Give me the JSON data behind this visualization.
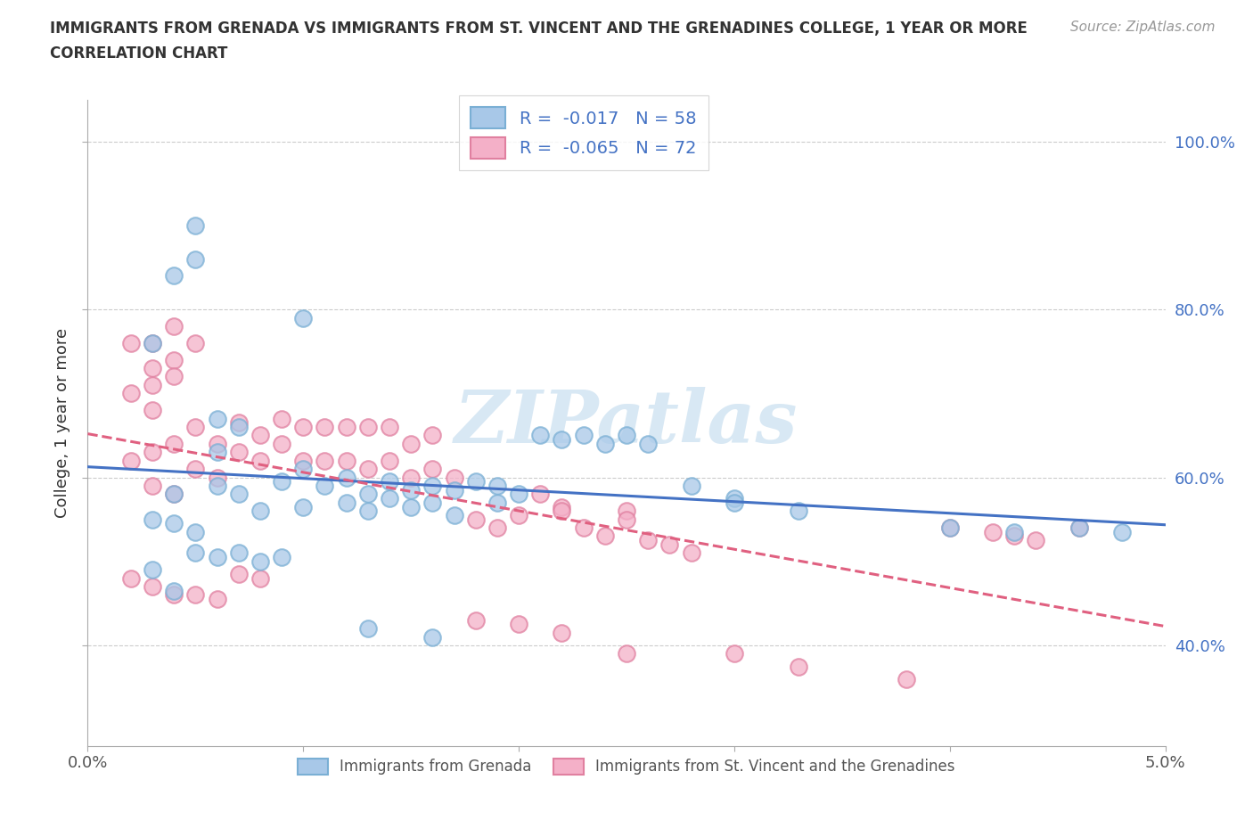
{
  "title_line1": "IMMIGRANTS FROM GRENADA VS IMMIGRANTS FROM ST. VINCENT AND THE GRENADINES COLLEGE, 1 YEAR OR MORE",
  "title_line2": "CORRELATION CHART",
  "source_text": "Source: ZipAtlas.com",
  "ylabel": "College, 1 year or more",
  "xlim": [
    0.0,
    0.05
  ],
  "ylim": [
    0.28,
    1.05
  ],
  "y_ticks": [
    0.4,
    0.6,
    0.8,
    1.0
  ],
  "y_tick_labels": [
    "40.0%",
    "60.0%",
    "80.0%",
    "100.0%"
  ],
  "x_ticks": [
    0.0,
    0.01,
    0.02,
    0.03,
    0.04,
    0.05
  ],
  "x_tick_labels": [
    "0.0%",
    "",
    "",
    "",
    "",
    "5.0%"
  ],
  "color_blue": "#a8c8e8",
  "edge_blue": "#7aafd4",
  "color_pink": "#f4b0c8",
  "edge_pink": "#e080a0",
  "line_blue": "#4472c4",
  "line_pink": "#e06080",
  "legend_text_color": "#4472c4",
  "legend_R1": "R =  -0.017",
  "legend_N1": "N = 58",
  "legend_R2": "R =  -0.065",
  "legend_N2": "N = 72",
  "label_blue": "Immigrants from Grenada",
  "label_pink": "Immigrants from St. Vincent and the Grenadines",
  "blue_x": [
    0.004,
    0.006,
    0.007,
    0.008,
    0.009,
    0.01,
    0.01,
    0.011,
    0.012,
    0.012,
    0.013,
    0.013,
    0.014,
    0.014,
    0.015,
    0.015,
    0.016,
    0.016,
    0.017,
    0.017,
    0.018,
    0.019,
    0.019,
    0.02,
    0.021,
    0.022,
    0.023,
    0.024,
    0.025,
    0.026,
    0.003,
    0.004,
    0.005,
    0.006,
    0.007,
    0.008,
    0.009,
    0.003,
    0.004,
    0.005,
    0.003,
    0.004,
    0.005,
    0.005,
    0.006,
    0.006,
    0.007,
    0.01,
    0.013,
    0.016,
    0.028,
    0.03,
    0.03,
    0.033,
    0.04,
    0.043,
    0.046,
    0.048
  ],
  "blue_y": [
    0.58,
    0.59,
    0.58,
    0.56,
    0.595,
    0.565,
    0.61,
    0.59,
    0.57,
    0.6,
    0.56,
    0.58,
    0.575,
    0.595,
    0.565,
    0.585,
    0.57,
    0.59,
    0.555,
    0.585,
    0.595,
    0.57,
    0.59,
    0.58,
    0.65,
    0.645,
    0.65,
    0.64,
    0.65,
    0.64,
    0.49,
    0.465,
    0.51,
    0.505,
    0.51,
    0.5,
    0.505,
    0.55,
    0.545,
    0.535,
    0.76,
    0.84,
    0.9,
    0.86,
    0.63,
    0.67,
    0.66,
    0.79,
    0.42,
    0.41,
    0.59,
    0.575,
    0.57,
    0.56,
    0.54,
    0.535,
    0.54,
    0.535
  ],
  "pink_x": [
    0.002,
    0.003,
    0.003,
    0.004,
    0.004,
    0.005,
    0.005,
    0.006,
    0.006,
    0.007,
    0.007,
    0.008,
    0.008,
    0.009,
    0.009,
    0.01,
    0.01,
    0.011,
    0.011,
    0.012,
    0.012,
    0.013,
    0.013,
    0.014,
    0.014,
    0.015,
    0.015,
    0.016,
    0.016,
    0.017,
    0.018,
    0.019,
    0.02,
    0.021,
    0.022,
    0.022,
    0.023,
    0.024,
    0.025,
    0.025,
    0.026,
    0.027,
    0.028,
    0.002,
    0.003,
    0.004,
    0.005,
    0.006,
    0.007,
    0.008,
    0.002,
    0.003,
    0.003,
    0.004,
    0.004,
    0.005,
    0.002,
    0.003,
    0.003,
    0.004,
    0.018,
    0.02,
    0.022,
    0.025,
    0.03,
    0.033,
    0.038,
    0.04,
    0.042,
    0.043,
    0.044,
    0.046
  ],
  "pink_y": [
    0.62,
    0.63,
    0.59,
    0.58,
    0.64,
    0.61,
    0.66,
    0.6,
    0.64,
    0.63,
    0.665,
    0.62,
    0.65,
    0.64,
    0.67,
    0.62,
    0.66,
    0.62,
    0.66,
    0.62,
    0.66,
    0.61,
    0.66,
    0.62,
    0.66,
    0.6,
    0.64,
    0.61,
    0.65,
    0.6,
    0.55,
    0.54,
    0.555,
    0.58,
    0.565,
    0.56,
    0.54,
    0.53,
    0.56,
    0.55,
    0.525,
    0.52,
    0.51,
    0.48,
    0.47,
    0.46,
    0.46,
    0.455,
    0.485,
    0.48,
    0.76,
    0.76,
    0.73,
    0.74,
    0.78,
    0.76,
    0.7,
    0.71,
    0.68,
    0.72,
    0.43,
    0.425,
    0.415,
    0.39,
    0.39,
    0.375,
    0.36,
    0.54,
    0.535,
    0.53,
    0.525,
    0.54
  ]
}
